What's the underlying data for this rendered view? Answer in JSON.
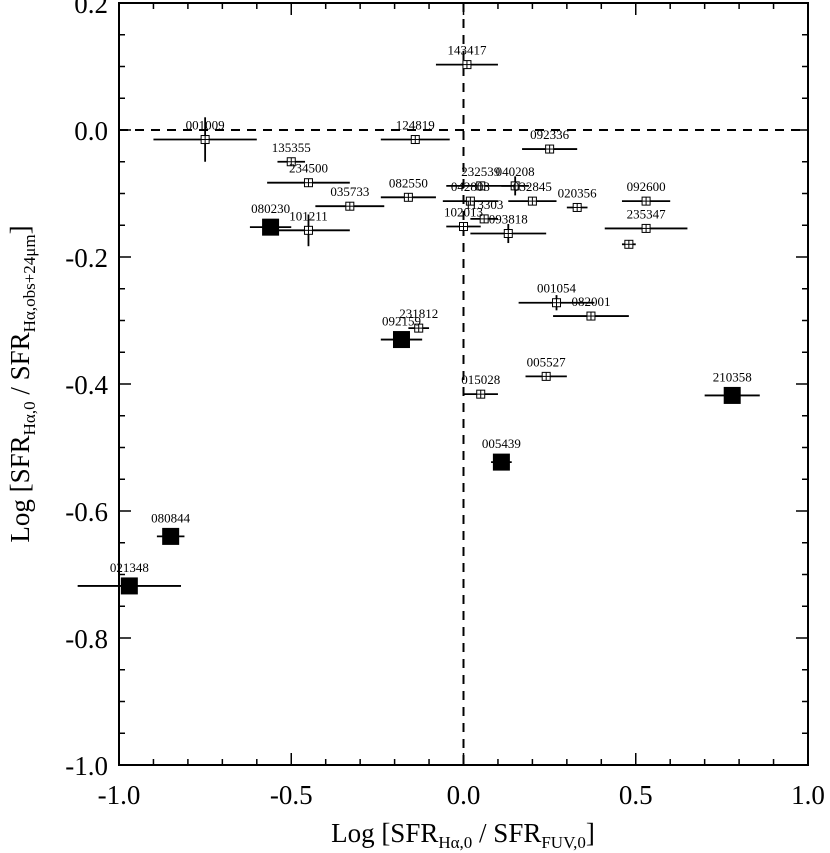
{
  "chart_data": {
    "type": "scatter",
    "xlabel": {
      "main": "Log [SFR",
      "sub1": "Hα,0",
      "mid": " / SFR",
      "sub2": "FUV,0",
      "end": "]"
    },
    "ylabel": {
      "main": "Log [SFR",
      "sub1": "Hα,0",
      "mid": " / SFR",
      "sub2": "Hα,obs+24μm",
      "end": "]"
    },
    "xlim": [
      -1.0,
      1.0
    ],
    "ylim": [
      -1.0,
      0.2
    ],
    "xticks": [
      -1.0,
      -0.5,
      0.0,
      0.5,
      1.0
    ],
    "xtick_labels": [
      "-1.0",
      "-0.5",
      "0.0",
      "0.5",
      "1.0"
    ],
    "yticks": [
      -1.0,
      -0.8,
      -0.6,
      -0.4,
      -0.2,
      0.0,
      0.2
    ],
    "ytick_labels": [
      "-1.0",
      "-0.8",
      "-0.6",
      "-0.4",
      "-0.2",
      "0.0",
      "0.2"
    ],
    "reference_lines": {
      "x": 0.0,
      "y": 0.0,
      "style": "dashed"
    },
    "series": [
      {
        "marker": "open-square",
        "points": [
          {
            "label": "143417",
            "x": 0.01,
            "y": 0.103,
            "xerr": 0.09,
            "yerr": 0.0
          },
          {
            "label": "001009",
            "x": -0.75,
            "y": -0.015,
            "xerr": 0.15,
            "yerr": 0.035
          },
          {
            "label": "124819",
            "x": -0.14,
            "y": -0.015,
            "xerr": 0.1,
            "yerr": 0.0
          },
          {
            "label": "092336",
            "x": 0.25,
            "y": -0.03,
            "xerr": 0.08,
            "yerr": 0.0
          },
          {
            "label": "135355",
            "x": -0.5,
            "y": -0.05,
            "xerr": 0.04,
            "yerr": 0.0
          },
          {
            "label": "234500",
            "x": -0.45,
            "y": -0.083,
            "xerr": 0.12,
            "yerr": 0.0
          },
          {
            "label": "040208",
            "x": 0.15,
            "y": -0.088,
            "xerr": 0.04,
            "yerr": 0.015
          },
          {
            "label": "232539",
            "x": 0.05,
            "y": -0.088,
            "xerr": 0.1,
            "yerr": 0.0
          },
          {
            "label": "035733",
            "x": -0.33,
            "y": -0.12,
            "xerr": 0.1,
            "yerr": 0.0
          },
          {
            "label": "082550",
            "x": -0.16,
            "y": -0.106,
            "xerr": 0.08,
            "yerr": 0.0
          },
          {
            "label": "032845",
            "x": 0.2,
            "y": -0.112,
            "xerr": 0.07,
            "yerr": 0.0
          },
          {
            "label": "020356",
            "x": 0.33,
            "y": -0.122,
            "xerr": 0.03,
            "yerr": 0.0
          },
          {
            "label": "092600",
            "x": 0.53,
            "y": -0.112,
            "xerr": 0.07,
            "yerr": 0.0
          },
          {
            "label": "042803",
            "x": 0.02,
            "y": -0.112,
            "xerr": 0.08,
            "yerr": 0.0
          },
          {
            "label": "101211",
            "x": -0.45,
            "y": -0.158,
            "xerr": 0.12,
            "yerr": 0.025
          },
          {
            "label": "102013",
            "x": 0.0,
            "y": -0.152,
            "xerr": 0.05,
            "yerr": 0.0
          },
          {
            "label": "113303",
            "x": 0.06,
            "y": -0.14,
            "xerr": 0.04,
            "yerr": 0.0
          },
          {
            "label": "235347",
            "x": 0.53,
            "y": -0.155,
            "xerr": 0.12,
            "yerr": 0.0
          },
          {
            "label": "093818",
            "x": 0.13,
            "y": -0.163,
            "xerr": 0.11,
            "yerr": 0.015
          },
          {
            "label": "",
            "x": 0.48,
            "y": -0.18,
            "xerr": 0.02,
            "yerr": 0.0
          },
          {
            "label": "001054",
            "x": 0.27,
            "y": -0.272,
            "xerr": 0.11,
            "yerr": 0.012
          },
          {
            "label": "082001",
            "x": 0.37,
            "y": -0.293,
            "xerr": 0.11,
            "yerr": 0.0
          },
          {
            "label": "231812",
            "x": -0.13,
            "y": -0.312,
            "xerr": 0.03,
            "yerr": 0.0
          },
          {
            "label": "005527",
            "x": 0.24,
            "y": -0.388,
            "xerr": 0.06,
            "yerr": 0.0
          },
          {
            "label": "015028",
            "x": 0.05,
            "y": -0.416,
            "xerr": 0.05,
            "yerr": 0.0
          }
        ]
      },
      {
        "marker": "filled-square",
        "points": [
          {
            "label": "080230",
            "x": -0.56,
            "y": -0.153,
            "xerr": 0.06,
            "yerr": 0.0
          },
          {
            "label": "092159",
            "x": -0.18,
            "y": -0.33,
            "xerr": 0.06,
            "yerr": 0.0
          },
          {
            "label": "210358",
            "x": 0.78,
            "y": -0.418,
            "xerr": 0.08,
            "yerr": 0.0
          },
          {
            "label": "005439",
            "x": 0.11,
            "y": -0.523,
            "xerr": 0.03,
            "yerr": 0.0
          },
          {
            "label": "080844",
            "x": -0.85,
            "y": -0.64,
            "xerr": 0.04,
            "yerr": 0.0
          },
          {
            "label": "021348",
            "x": -0.97,
            "y": -0.718,
            "xerr": 0.15,
            "yerr": 0.0
          }
        ]
      }
    ]
  }
}
